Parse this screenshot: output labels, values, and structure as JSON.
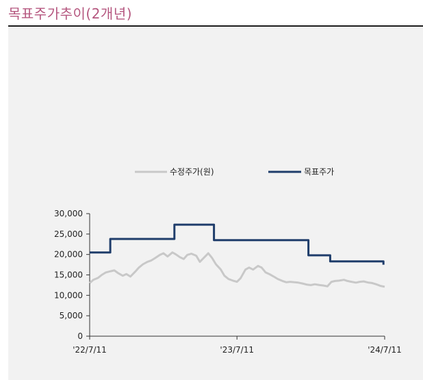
{
  "title": "목표주가추이(2개년)",
  "colors": {
    "title": "#b5577f",
    "adjusted": "#c8c8c8",
    "target": "#1f3d6b"
  },
  "chart_data": {
    "type": "line",
    "title": "",
    "xlabel": "",
    "ylabel": "",
    "xlim": [
      "2022-07-11",
      "2024-07-11"
    ],
    "ylim": [
      0,
      30000
    ],
    "y_ticks": [
      0,
      5000,
      10000,
      15000,
      20000,
      25000,
      30000
    ],
    "y_tick_labels": [
      "0",
      "5,000",
      "10,000",
      "15,000",
      "20,000",
      "25,000",
      "30,000"
    ],
    "x_ticks": [
      "2022-07-11",
      "2023-07-11",
      "2024-07-11"
    ],
    "x_tick_labels": [
      "'22/7/11",
      "'23/7/11",
      "'24/7/11"
    ],
    "grid": false,
    "legend_position": "top-center",
    "series": [
      {
        "name": "수정주가(원)",
        "color": "#c8c8c8",
        "points": [
          [
            "2022-07-11",
            13000
          ],
          [
            "2022-07-20",
            13800
          ],
          [
            "2022-08-01",
            14300
          ],
          [
            "2022-08-10",
            15000
          ],
          [
            "2022-08-20",
            15600
          ],
          [
            "2022-09-01",
            15900
          ],
          [
            "2022-09-10",
            16100
          ],
          [
            "2022-09-20",
            15400
          ],
          [
            "2022-10-01",
            14800
          ],
          [
            "2022-10-10",
            15200
          ],
          [
            "2022-10-20",
            14600
          ],
          [
            "2022-11-01",
            15800
          ],
          [
            "2022-11-10",
            16800
          ],
          [
            "2022-11-20",
            17600
          ],
          [
            "2022-12-01",
            18200
          ],
          [
            "2022-12-10",
            18500
          ],
          [
            "2022-12-20",
            19100
          ],
          [
            "2023-01-01",
            19900
          ],
          [
            "2023-01-10",
            20300
          ],
          [
            "2023-01-20",
            19500
          ],
          [
            "2023-02-01",
            20500
          ],
          [
            "2023-02-10",
            20000
          ],
          [
            "2023-02-20",
            19300
          ],
          [
            "2023-03-01",
            18900
          ],
          [
            "2023-03-10",
            19900
          ],
          [
            "2023-03-20",
            20200
          ],
          [
            "2023-04-01",
            19700
          ],
          [
            "2023-04-10",
            18200
          ],
          [
            "2023-04-20",
            19200
          ],
          [
            "2023-05-01",
            20300
          ],
          [
            "2023-05-10",
            19200
          ],
          [
            "2023-05-20",
            17600
          ],
          [
            "2023-06-01",
            16300
          ],
          [
            "2023-06-10",
            14800
          ],
          [
            "2023-06-20",
            14000
          ],
          [
            "2023-07-01",
            13600
          ],
          [
            "2023-07-11",
            13300
          ],
          [
            "2023-07-20",
            14200
          ],
          [
            "2023-08-01",
            16300
          ],
          [
            "2023-08-10",
            16800
          ],
          [
            "2023-08-20",
            16300
          ],
          [
            "2023-09-01",
            17200
          ],
          [
            "2023-09-10",
            16800
          ],
          [
            "2023-09-20",
            15600
          ],
          [
            "2023-10-01",
            15100
          ],
          [
            "2023-10-10",
            14600
          ],
          [
            "2023-10-20",
            14000
          ],
          [
            "2023-11-01",
            13500
          ],
          [
            "2023-11-10",
            13200
          ],
          [
            "2023-11-20",
            13300
          ],
          [
            "2023-12-01",
            13200
          ],
          [
            "2023-12-10",
            13100
          ],
          [
            "2023-12-20",
            12900
          ],
          [
            "2024-01-01",
            12600
          ],
          [
            "2024-01-10",
            12500
          ],
          [
            "2024-01-20",
            12700
          ],
          [
            "2024-02-01",
            12500
          ],
          [
            "2024-02-10",
            12400
          ],
          [
            "2024-02-20",
            12200
          ],
          [
            "2024-03-01",
            13300
          ],
          [
            "2024-03-10",
            13500
          ],
          [
            "2024-03-20",
            13600
          ],
          [
            "2024-04-01",
            13800
          ],
          [
            "2024-04-10",
            13500
          ],
          [
            "2024-04-20",
            13300
          ],
          [
            "2024-05-01",
            13100
          ],
          [
            "2024-05-10",
            13300
          ],
          [
            "2024-05-20",
            13400
          ],
          [
            "2024-06-01",
            13100
          ],
          [
            "2024-06-10",
            13000
          ],
          [
            "2024-06-20",
            12700
          ],
          [
            "2024-07-01",
            12300
          ],
          [
            "2024-07-11",
            12100
          ]
        ]
      },
      {
        "name": "목표주가",
        "color": "#1f3d6b",
        "points": [
          [
            "2022-07-11",
            20500
          ],
          [
            "2022-08-31",
            20500
          ],
          [
            "2022-08-31",
            23800
          ],
          [
            "2023-02-06",
            23800
          ],
          [
            "2023-02-06",
            27300
          ],
          [
            "2023-05-15",
            27300
          ],
          [
            "2023-05-15",
            23500
          ],
          [
            "2024-01-04",
            23500
          ],
          [
            "2024-01-04",
            19800
          ],
          [
            "2024-02-27",
            19800
          ],
          [
            "2024-02-27",
            18300
          ],
          [
            "2024-07-08",
            18300
          ],
          [
            "2024-07-08",
            17500
          ]
        ]
      }
    ]
  }
}
